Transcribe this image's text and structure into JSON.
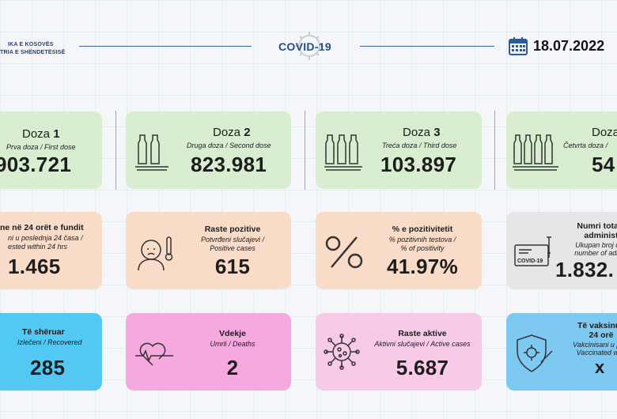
{
  "header": {
    "logo_line1": "IKA E KOSOVËS",
    "logo_line2": "TRIA E SHËNDETËSISË",
    "covid_label": "COVID-19",
    "date": "18.07.2022"
  },
  "doses": [
    {
      "title": "Doza",
      "num": "1",
      "sub": "Prva doza / First dose",
      "value": "903.721"
    },
    {
      "title": "Doza",
      "num": "2",
      "sub": "Druga doza / Second dose",
      "value": "823.981"
    },
    {
      "title": "Doza",
      "num": "3",
      "sub": "Treća doza / Third dose",
      "value": "103.897"
    },
    {
      "title": "Doza",
      "num": "",
      "sub": "Četvrta doza /",
      "value": "54"
    }
  ],
  "tests": {
    "title": "ne në 24 orët e fundit",
    "sub1": "ni u poslednja 24 časa /",
    "sub2": "ested within 24 hrs",
    "value": "1.465"
  },
  "positive": {
    "title": "Raste pozitive",
    "sub1": "Potvrđeni slučajevi /",
    "sub2": "Positive cases",
    "value": "615"
  },
  "positivity": {
    "title": "% e pozitivitetit",
    "sub1": "% pozitivnih testova /",
    "sub2": "% of positivity",
    "value": "41.97%"
  },
  "total_admin": {
    "title1": "Numri total i",
    "title2": "administ",
    "sub1": "Ukupan broj dati",
    "sub2": "number of admin",
    "value": "1.832.",
    "icon_text": "COVID-19"
  },
  "recovered": {
    "title": "Të shëruar",
    "sub": "Izlečeni / Recovered",
    "value": "285"
  },
  "deaths": {
    "title": "Vdekje",
    "sub": "Umrli / Deaths",
    "value": "2"
  },
  "active": {
    "title": "Raste aktive",
    "sub": "Aktivni slučajevi / Active cases",
    "value": "5.687"
  },
  "vaccinated": {
    "title1": "Të vaksinua",
    "title2": "24 orë",
    "sub1": "Vakcinisani u posl",
    "sub2": "Vaccinated with",
    "value": "x"
  },
  "colors": {
    "green": "#d9edd1",
    "peach": "#f8dcc8",
    "grey": "#e6e6e6",
    "blue": "#52c8f3",
    "pink": "#f6a9de",
    "light_pink": "#f7cbe7",
    "light_blue": "#7ec9f2"
  }
}
